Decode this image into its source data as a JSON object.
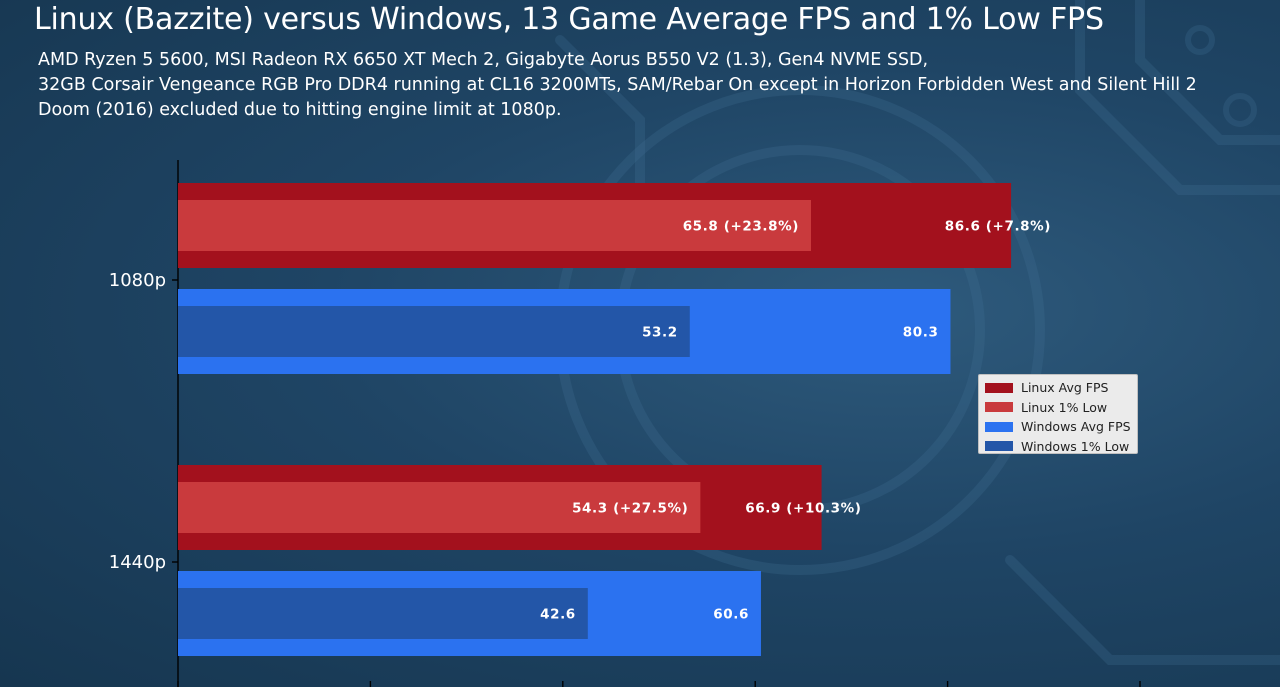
{
  "header": {
    "title": "Linux (Bazzite) versus Windows, 13 Game Average FPS and 1% Low FPS",
    "subtitle_lines": [
      "AMD Ryzen 5 5600, MSI Radeon RX 6650 XT Mech 2, Gigabyte Aorus B550 V2 (1.3),  Gen4 NVME SSD,",
      "32GB Corsair Vengeance RGB Pro DDR4 running at CL16 3200MTs, SAM/Rebar On except in Horizon Forbidden West and Silent Hill 2",
      "Doom (2016) excluded due to hitting engine limit at 1080p."
    ]
  },
  "chart_data": {
    "type": "bar",
    "orientation": "horizontal",
    "categories": [
      "1080p",
      "1440p"
    ],
    "series": [
      {
        "name": "Linux Avg FPS",
        "color": "#a3111d",
        "values": [
          86.6,
          66.9
        ],
        "labels": [
          "86.6 (+7.8%)",
          "66.9 (+10.3%)"
        ]
      },
      {
        "name": "Linux 1% Low",
        "color": "#c93a3d",
        "values": [
          65.8,
          54.3
        ],
        "labels": [
          "65.8 (+23.8%)",
          "54.3 (+27.5%)"
        ]
      },
      {
        "name": "Windows Avg FPS",
        "color": "#2b72f0",
        "values": [
          80.3,
          60.6
        ],
        "labels": [
          "80.3",
          "60.6"
        ]
      },
      {
        "name": "Windows 1% Low",
        "color": "#2356a8",
        "values": [
          53.2,
          42.6
        ],
        "labels": [
          "53.2",
          "42.6"
        ]
      }
    ],
    "xlim": [
      0,
      100
    ],
    "grid": false,
    "legend_position": "center-right"
  }
}
